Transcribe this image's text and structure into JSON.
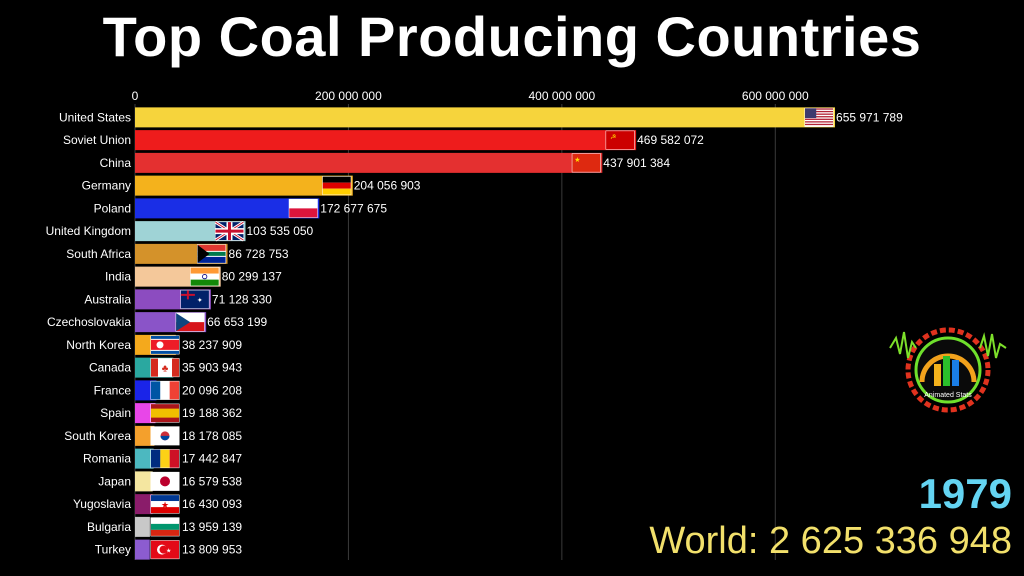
{
  "title": "Top Coal Producing Countries",
  "year": "1979",
  "world_total": "World: 2 625 336 948",
  "logo_text": "Animated Stats",
  "chart_data": {
    "type": "bar",
    "orientation": "horizontal",
    "title": "Top Coal Producing Countries",
    "xlim": [
      0,
      700000000
    ],
    "xticks": [
      0,
      200000000,
      400000000,
      600000000
    ],
    "xtick_labels": [
      "0",
      "200 000 000",
      "400 000 000",
      "600 000 000"
    ],
    "grid": true,
    "bars": [
      {
        "category": "United States",
        "value": 655971789,
        "label": "655 971 789",
        "color": "#f6d43c",
        "flag": "us"
      },
      {
        "category": "Soviet Union",
        "value": 469582072,
        "label": "469 582 072",
        "color": "#ee1c1c",
        "flag": "su"
      },
      {
        "category": "China",
        "value": 437901384,
        "label": "437 901 384",
        "color": "#e43030",
        "flag": "cn"
      },
      {
        "category": "Germany",
        "value": 204056903,
        "label": "204 056 903",
        "color": "#f4b21c",
        "flag": "de"
      },
      {
        "category": "Poland",
        "value": 172677675,
        "label": "172 677 675",
        "color": "#1a2ee6",
        "flag": "pl"
      },
      {
        "category": "United Kingdom",
        "value": 103535050,
        "label": "103 535 050",
        "color": "#9fd3d6",
        "flag": "gb"
      },
      {
        "category": "South Africa",
        "value": 86728753,
        "label": "86 728 753",
        "color": "#d4922a",
        "flag": "za"
      },
      {
        "category": "India",
        "value": 80299137,
        "label": "80 299 137",
        "color": "#f4c89a",
        "flag": "in"
      },
      {
        "category": "Australia",
        "value": 71128330,
        "label": "71 128 330",
        "color": "#8c4cc0",
        "flag": "au"
      },
      {
        "category": "Czechoslovakia",
        "value": 66653199,
        "label": "66 653 199",
        "color": "#8a54c8",
        "flag": "cz"
      },
      {
        "category": "North Korea",
        "value": 38237909,
        "label": "38 237 909",
        "color": "#f4a91c",
        "flag": "kp"
      },
      {
        "category": "Canada",
        "value": 35903943,
        "label": "35 903 943",
        "color": "#2aa8a0",
        "flag": "ca"
      },
      {
        "category": "France",
        "value": 20096208,
        "label": "20 096 208",
        "color": "#1a24e8",
        "flag": "fr"
      },
      {
        "category": "Spain",
        "value": 19188362,
        "label": "19 188 362",
        "color": "#e846e8",
        "flag": "es"
      },
      {
        "category": "South Korea",
        "value": 18178085,
        "label": "18 178 085",
        "color": "#f4a02c",
        "flag": "kr"
      },
      {
        "category": "Romania",
        "value": 17442847,
        "label": "17 442 847",
        "color": "#4cb8c0",
        "flag": "ro"
      },
      {
        "category": "Japan",
        "value": 16579538,
        "label": "16 579 538",
        "color": "#f4e6a0",
        "flag": "jp"
      },
      {
        "category": "Yugoslavia",
        "value": 16430093,
        "label": "16 430 093",
        "color": "#8a1c6a",
        "flag": "yu"
      },
      {
        "category": "Bulgaria",
        "value": 13959139,
        "label": "13 959 139",
        "color": "#c8c8c8",
        "flag": "bg"
      },
      {
        "category": "Turkey",
        "value": 13809953,
        "label": "13 809 953",
        "color": "#8c5cd0",
        "flag": "tr"
      }
    ]
  }
}
